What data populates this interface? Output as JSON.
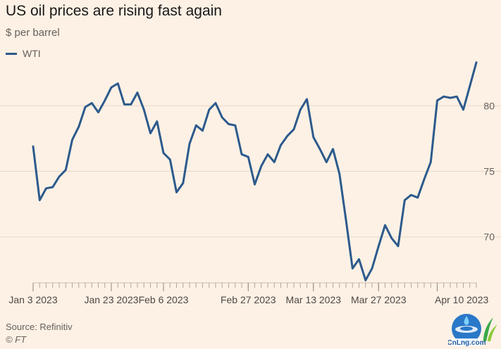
{
  "chart_data": {
    "type": "line",
    "title": "US oil prices are rising fast again",
    "subtitle": "$ per barrel",
    "source": "Source: Refinitiv",
    "copyright": "© FT",
    "ylim": [
      66.5,
      83.5
    ],
    "yticks": [
      70,
      75,
      80
    ],
    "xticks": [
      "Jan 3 2023",
      "Jan 23 2023",
      "Feb 6 2023",
      "Feb 27 2023",
      "Mar 13 2023",
      "Mar 27 2023",
      "Apr 10 2023"
    ],
    "grid": true,
    "legend_position": "top-left",
    "series": [
      {
        "name": "WTI",
        "color": "#2c5a8c",
        "values": [
          76.9,
          72.8,
          73.7,
          73.8,
          74.6,
          75.1,
          77.4,
          78.4,
          79.9,
          80.2,
          79.5,
          80.4,
          81.4,
          81.7,
          80.1,
          80.1,
          81.0,
          79.7,
          77.9,
          78.8,
          76.4,
          75.9,
          73.4,
          74.1,
          77.1,
          78.5,
          78.1,
          79.7,
          80.2,
          79.1,
          78.6,
          78.5,
          76.3,
          76.1,
          74.0,
          75.4,
          76.3,
          75.7,
          77.0,
          77.7,
          78.2,
          79.7,
          80.5,
          77.6,
          76.7,
          75.7,
          76.7,
          74.8,
          71.3,
          67.6,
          68.3,
          66.7,
          67.6,
          69.3,
          70.9,
          69.9,
          69.3,
          72.8,
          73.2,
          73.0,
          74.4,
          75.7,
          80.4,
          80.7,
          80.6,
          80.7,
          79.7,
          81.5,
          83.3
        ]
      }
    ]
  },
  "logo_text": "CnLng.com"
}
